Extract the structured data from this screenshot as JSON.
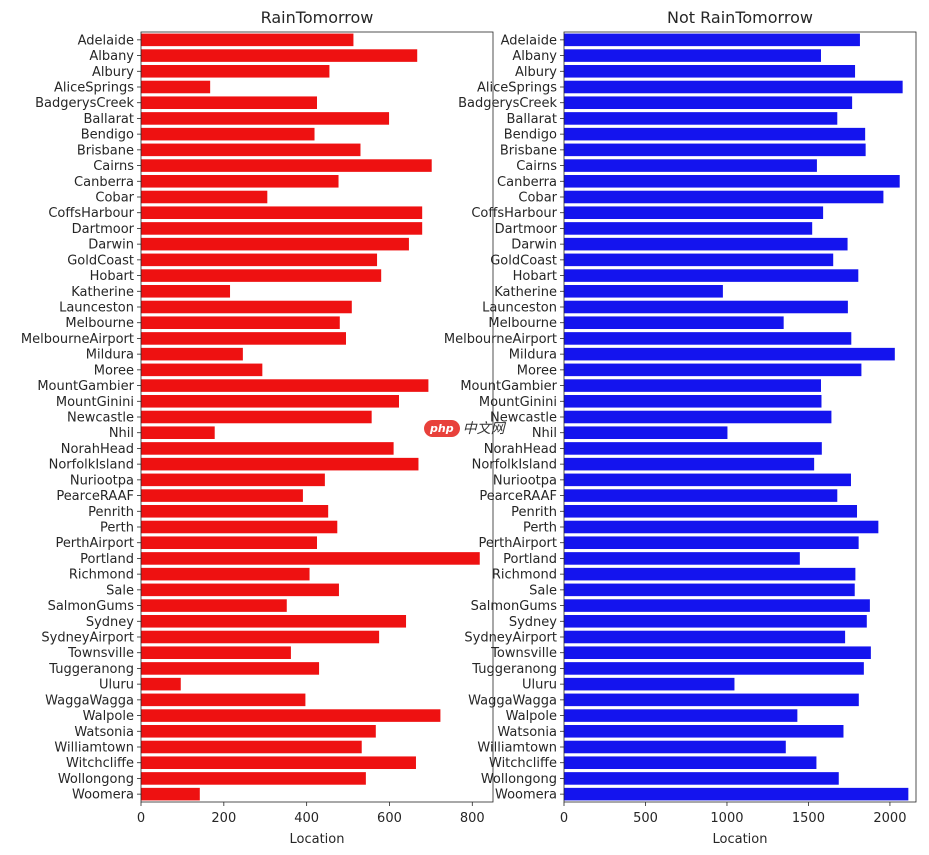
{
  "chart_data": [
    {
      "type": "bar",
      "orientation": "horizontal",
      "title": "RainTomorrow",
      "xlabel": "Location",
      "ylabel": "",
      "xlim": [
        0,
        850
      ],
      "xticks": [
        0,
        200,
        400,
        600,
        800
      ],
      "color": "#ee1111",
      "grid": false,
      "categories": [
        "Adelaide",
        "Albany",
        "Albury",
        "AliceSprings",
        "BadgerysCreek",
        "Ballarat",
        "Bendigo",
        "Brisbane",
        "Cairns",
        "Canberra",
        "Cobar",
        "CoffsHarbour",
        "Dartmoor",
        "Darwin",
        "GoldCoast",
        "Hobart",
        "Katherine",
        "Launceston",
        "Melbourne",
        "MelbourneAirport",
        "Mildura",
        "Moree",
        "MountGambier",
        "MountGinini",
        "Newcastle",
        "Nhil",
        "NorahHead",
        "NorfolkIsland",
        "Nuriootpa",
        "PearceRAAF",
        "Penrith",
        "Perth",
        "PerthAirport",
        "Portland",
        "Richmond",
        "Sale",
        "SalmonGums",
        "Sydney",
        "SydneyAirport",
        "Townsville",
        "Tuggeranong",
        "Uluru",
        "WaggaWagga",
        "Walpole",
        "Watsonia",
        "Williamtown",
        "Witchcliffe",
        "Wollongong",
        "Woomera"
      ],
      "values": [
        513,
        667,
        455,
        167,
        425,
        599,
        419,
        530,
        702,
        477,
        305,
        679,
        679,
        647,
        570,
        580,
        215,
        509,
        480,
        495,
        246,
        293,
        694,
        623,
        557,
        178,
        610,
        670,
        444,
        391,
        452,
        474,
        425,
        818,
        407,
        478,
        352,
        640,
        575,
        362,
        430,
        96,
        397,
        723,
        567,
        533,
        664,
        543,
        142
      ]
    },
    {
      "type": "bar",
      "orientation": "horizontal",
      "title": "Not RainTomorrow",
      "xlabel": "Location",
      "ylabel": "",
      "xlim": [
        0,
        2160
      ],
      "xticks": [
        0,
        500,
        1000,
        1500,
        2000
      ],
      "color": "#1414ee",
      "grid": false,
      "categories": [
        "Adelaide",
        "Albany",
        "Albury",
        "AliceSprings",
        "BadgerysCreek",
        "Ballarat",
        "Bendigo",
        "Brisbane",
        "Cairns",
        "Canberra",
        "Cobar",
        "CoffsHarbour",
        "Dartmoor",
        "Darwin",
        "GoldCoast",
        "Hobart",
        "Katherine",
        "Launceston",
        "Melbourne",
        "MelbourneAirport",
        "Mildura",
        "Moree",
        "MountGambier",
        "MountGinini",
        "Newcastle",
        "Nhil",
        "NorahHead",
        "NorfolkIsland",
        "Nuriootpa",
        "PearceRAAF",
        "Penrith",
        "Perth",
        "PerthAirport",
        "Portland",
        "Richmond",
        "Sale",
        "SalmonGums",
        "Sydney",
        "SydneyAirport",
        "Townsville",
        "Tuggeranong",
        "Uluru",
        "WaggaWagga",
        "Walpole",
        "Watsonia",
        "Williamtown",
        "Witchcliffe",
        "Wollongong",
        "Woomera"
      ],
      "values": [
        1816,
        1577,
        1786,
        2078,
        1768,
        1677,
        1848,
        1851,
        1552,
        2060,
        1960,
        1590,
        1523,
        1740,
        1652,
        1806,
        975,
        1742,
        1348,
        1763,
        2030,
        1825,
        1577,
        1580,
        1641,
        1003,
        1582,
        1535,
        1761,
        1677,
        1798,
        1929,
        1808,
        1447,
        1788,
        1784,
        1877,
        1858,
        1725,
        1883,
        1840,
        1046,
        1809,
        1432,
        1715,
        1361,
        1549,
        1686,
        2113
      ]
    }
  ],
  "watermark": {
    "badge": "php",
    "text": "中文网"
  }
}
